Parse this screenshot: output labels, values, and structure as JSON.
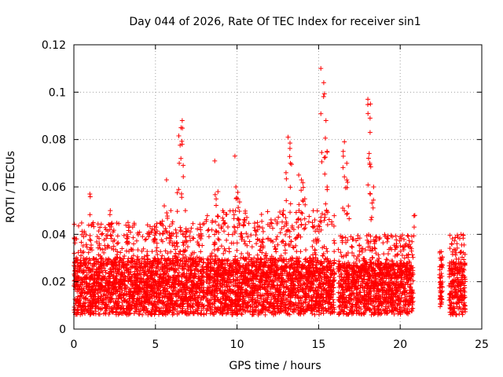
{
  "chart_data": {
    "type": "scatter",
    "title": "Day 044 of 2026, Rate Of TEC Index for receiver sin1",
    "xlabel": "GPS time / hours",
    "ylabel": "ROTI / TECUs",
    "xlim": [
      0,
      25
    ],
    "ylim": [
      0,
      0.12
    ],
    "xticks": [
      "0",
      "5",
      "10",
      "15",
      "20",
      "25"
    ],
    "yticks": [
      "0",
      "0.02",
      "0.04",
      "0.06",
      "0.08",
      "0.1",
      "0.12"
    ],
    "grid": true,
    "marker": "plus",
    "color": "#ff0000",
    "series": [
      {
        "values_per_hour_band": [
          {
            "x_range": [
              0.0,
              8.0
            ],
            "typical_y": [
              0.006,
              0.03
            ],
            "peak_y": 0.045
          },
          {
            "x_range": [
              8.1,
              16.0
            ],
            "typical_y": [
              0.006,
              0.03
            ],
            "peak_y": 0.05
          },
          {
            "x_range": [
              16.2,
              20.8
            ],
            "typical_y": [
              0.006,
              0.028
            ],
            "peak_y": 0.04
          },
          {
            "x_range": [
              22.4,
              22.6
            ],
            "typical_y": [
              0.008,
              0.03
            ],
            "peak_y": 0.034
          },
          {
            "x_range": [
              23.0,
              24.0
            ],
            "typical_y": [
              0.006,
              0.028
            ],
            "peak_y": 0.04
          }
        ],
        "spikes": [
          [
            1.0,
            0.057
          ],
          [
            2.2,
            0.05
          ],
          [
            3.3,
            0.045
          ],
          [
            5.0,
            0.043
          ],
          [
            5.5,
            0.052
          ],
          [
            5.7,
            0.063
          ],
          [
            6.0,
            0.05
          ],
          [
            6.4,
            0.07
          ],
          [
            6.5,
            0.085
          ],
          [
            6.6,
            0.088
          ],
          [
            6.65,
            0.078
          ],
          [
            6.8,
            0.05
          ],
          [
            8.7,
            0.071
          ],
          [
            8.8,
            0.058
          ],
          [
            9.2,
            0.05
          ],
          [
            9.9,
            0.073
          ],
          [
            10.0,
            0.06
          ],
          [
            10.1,
            0.055
          ],
          [
            11.2,
            0.045
          ],
          [
            12.8,
            0.05
          ],
          [
            13.0,
            0.066
          ],
          [
            13.2,
            0.081
          ],
          [
            13.3,
            0.07
          ],
          [
            13.8,
            0.065
          ],
          [
            14.0,
            0.063
          ],
          [
            14.1,
            0.055
          ],
          [
            15.2,
            0.11
          ],
          [
            15.3,
            0.104
          ],
          [
            15.4,
            0.088
          ],
          [
            15.45,
            0.075
          ],
          [
            15.5,
            0.06
          ],
          [
            16.5,
            0.075
          ],
          [
            16.6,
            0.079
          ],
          [
            16.7,
            0.07
          ],
          [
            16.8,
            0.062
          ],
          [
            18.0,
            0.097
          ],
          [
            18.1,
            0.095
          ],
          [
            18.15,
            0.083
          ],
          [
            18.2,
            0.07
          ],
          [
            18.3,
            0.06
          ],
          [
            20.9,
            0.048
          ],
          [
            23.8,
            0.04
          ]
        ]
      }
    ]
  }
}
